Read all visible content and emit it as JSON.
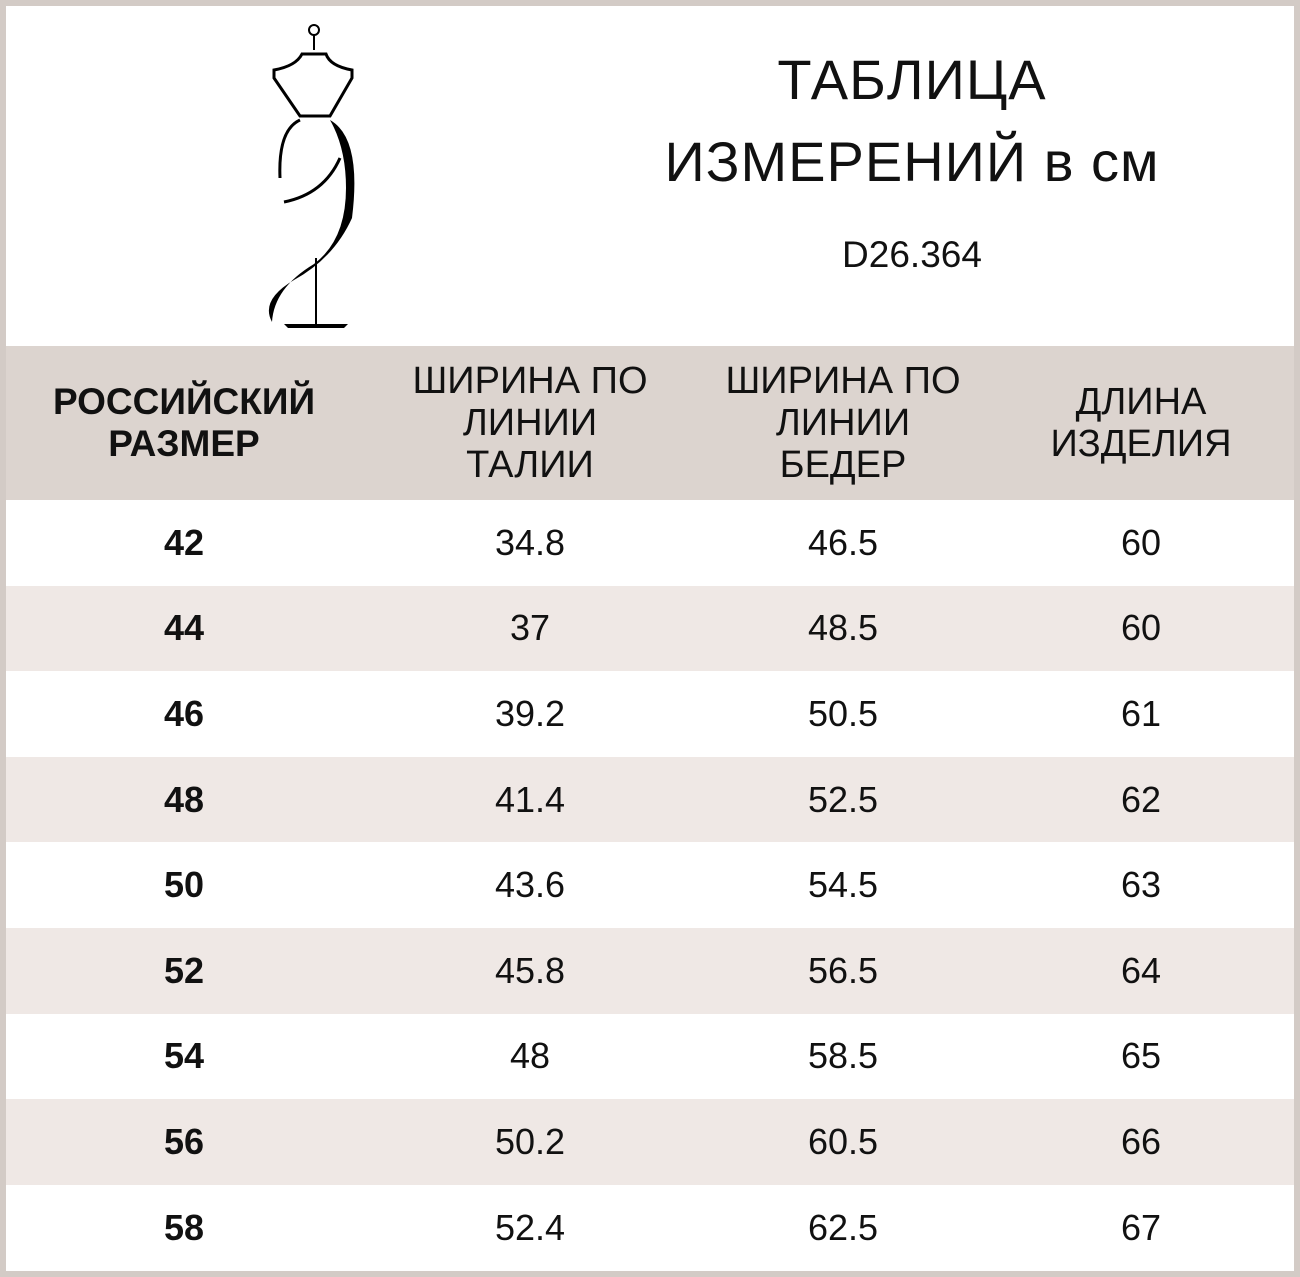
{
  "header": {
    "title_line1": "ТАБЛИЦА",
    "title_line2": "ИЗМЕРЕНИЙ в см",
    "product_code": "D26.364",
    "logo_icon": "dress-mannequin-icon"
  },
  "colors": {
    "frame": "#d3cbc6",
    "header_bg": "#dcd4cf",
    "alt_row_bg": "#efe8e5"
  },
  "table": {
    "columns": [
      {
        "lines": [
          "РОССИЙСКИЙ",
          "РАЗМЕР"
        ]
      },
      {
        "lines": [
          "ШИРИНА ПО",
          "ЛИНИИ",
          "ТАЛИИ"
        ]
      },
      {
        "lines": [
          "ШИРИНА ПО",
          "ЛИНИИ",
          "БЕДЕР"
        ]
      },
      {
        "lines": [
          "ДЛИНА",
          "ИЗДЕЛИЯ"
        ]
      }
    ],
    "rows": [
      [
        "42",
        "34.8",
        "46.5",
        "60"
      ],
      [
        "44",
        "37",
        "48.5",
        "60"
      ],
      [
        "46",
        "39.2",
        "50.5",
        "61"
      ],
      [
        "48",
        "41.4",
        "52.5",
        "62"
      ],
      [
        "50",
        "43.6",
        "54.5",
        "63"
      ],
      [
        "52",
        "45.8",
        "56.5",
        "64"
      ],
      [
        "54",
        "48",
        "58.5",
        "65"
      ],
      [
        "56",
        "50.2",
        "60.5",
        "66"
      ],
      [
        "58",
        "52.4",
        "62.5",
        "67"
      ]
    ]
  }
}
